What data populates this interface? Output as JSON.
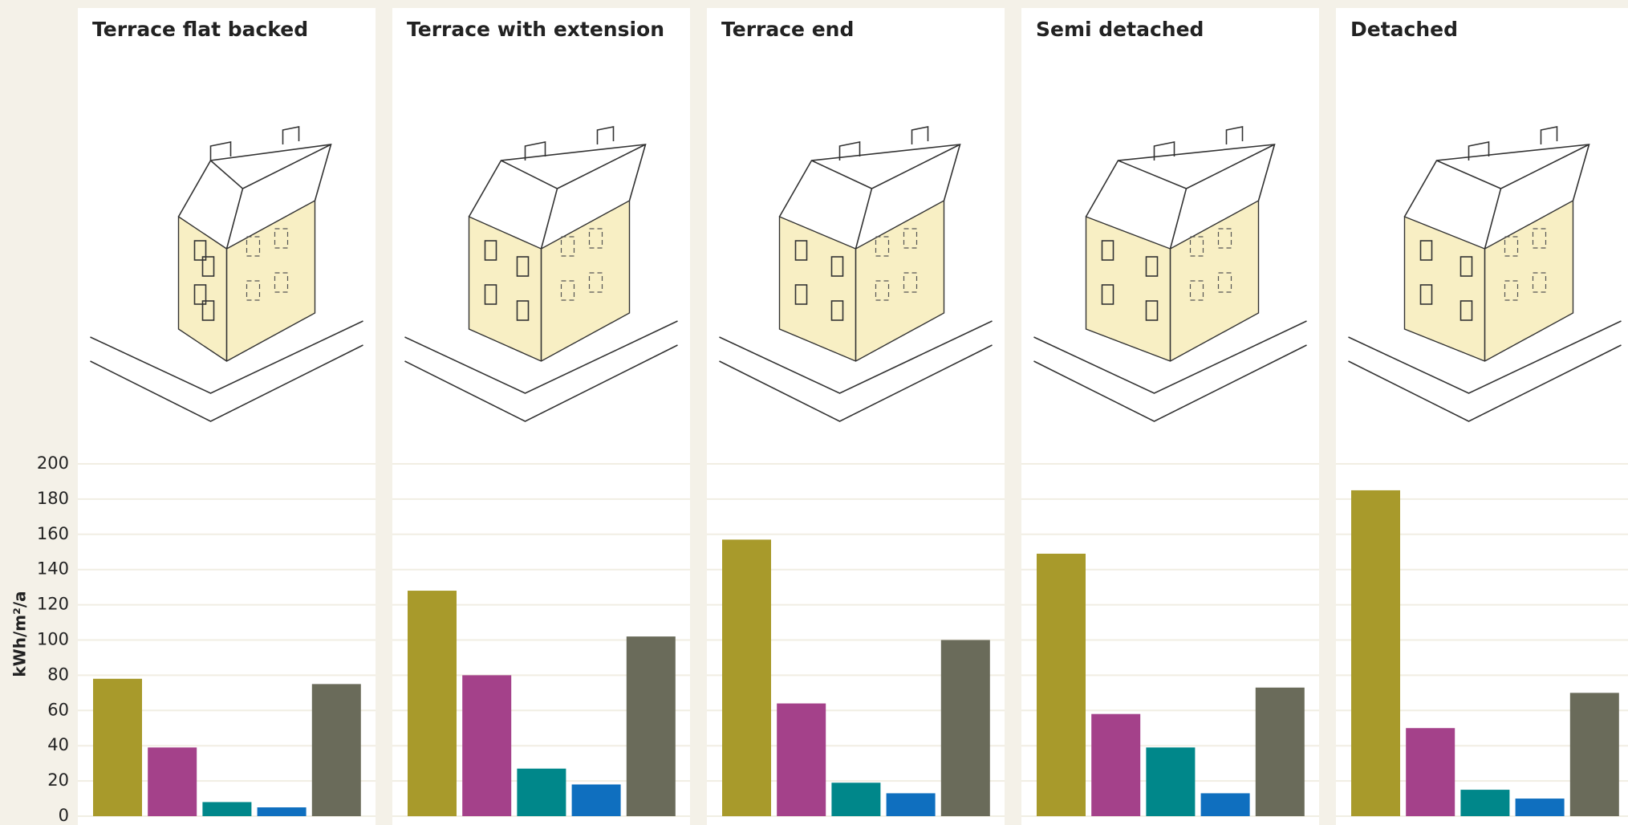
{
  "chart_data": [
    {
      "type": "bar",
      "title": "Terrace flat backed",
      "values": [
        78,
        39,
        8,
        5,
        75
      ],
      "colors": [
        "#a89a2b",
        "#a4418a",
        "#00878a",
        "#0f6fbf",
        "#6a6b5a"
      ],
      "y_label": "kWh/m²/a",
      "ylim": [
        0,
        200
      ],
      "yticks": [
        0,
        20,
        40,
        60,
        80,
        100,
        120,
        140,
        160,
        180,
        200
      ],
      "grid": true
    },
    {
      "type": "bar",
      "title": "Terrace with extension",
      "values": [
        128,
        80,
        27,
        18,
        102
      ],
      "colors": [
        "#a89a2b",
        "#a4418a",
        "#00878a",
        "#0f6fbf",
        "#6a6b5a"
      ]
    },
    {
      "type": "bar",
      "title": "Terrace end",
      "values": [
        157,
        64,
        19,
        13,
        100
      ],
      "colors": [
        "#a89a2b",
        "#a4418a",
        "#00878a",
        "#0f6fbf",
        "#6a6b5a"
      ]
    },
    {
      "type": "bar",
      "title": "Semi detached",
      "values": [
        149,
        58,
        39,
        13,
        73
      ],
      "colors": [
        "#a89a2b",
        "#a4418a",
        "#00878a",
        "#0f6fbf",
        "#6a6b5a"
      ]
    },
    {
      "type": "bar",
      "title": "Detached",
      "values": [
        185,
        50,
        15,
        10,
        70
      ],
      "colors": [
        "#a89a2b",
        "#a4418a",
        "#00878a",
        "#0f6fbf",
        "#6a6b5a"
      ]
    }
  ]
}
